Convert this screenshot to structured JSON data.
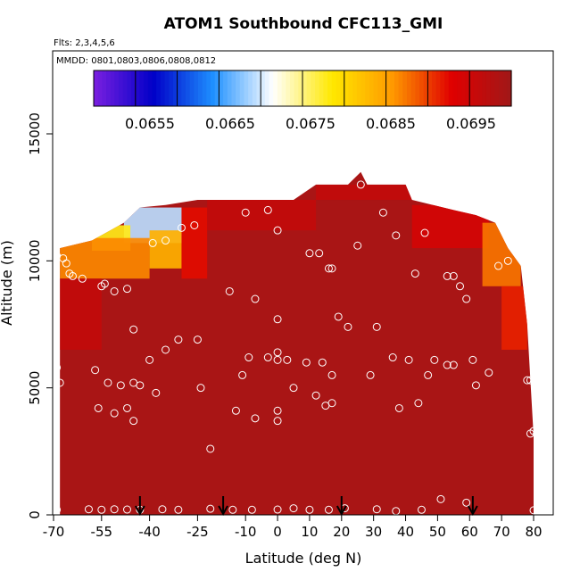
{
  "chart_data": {
    "type": "heatmap",
    "title": "ATOM1 Southbound CFC113_GMI",
    "flights_label": "Flts: 2,3,4,5,6",
    "mmdd_label": "MMDD: 0801,0803,0806,0808,0812",
    "xlabel": "Latitude (deg N)",
    "ylabel": "Altitude (m)",
    "xlim": [
      -70,
      85
    ],
    "ylim": [
      0,
      17500
    ],
    "x_ticks": [
      -70,
      -55,
      -40,
      -25,
      -10,
      0,
      10,
      20,
      30,
      40,
      50,
      60,
      70,
      80
    ],
    "y_ticks": [
      0,
      5000,
      10000,
      15000
    ],
    "colorbar": {
      "range": [
        0.0648,
        0.07
      ],
      "ticks": [
        0.0655,
        0.0665,
        0.0675,
        0.0685,
        0.0695
      ],
      "tick_labels": [
        "0.0655",
        "0.0665",
        "0.0675",
        "0.0685",
        "0.0695"
      ],
      "colors": [
        "#7a1fe0",
        "#0000c8",
        "#1e90ff",
        "#ffffff",
        "#ffe800",
        "#ff9a00",
        "#e00000",
        "#a01818"
      ]
    },
    "field": {
      "background_value": 0.0699,
      "southern_edge_lat": -68,
      "northern_edge_lat": 79,
      "max_altitude_m": 13500
    },
    "ceiling_profile": [
      {
        "lat": -68,
        "alt": 10500
      },
      {
        "lat": -58,
        "alt": 10800
      },
      {
        "lat": -48,
        "alt": 11500
      },
      {
        "lat": -43,
        "alt": 12100
      },
      {
        "lat": -35,
        "alt": 12200
      },
      {
        "lat": -25,
        "alt": 12400
      },
      {
        "lat": -15,
        "alt": 12400
      },
      {
        "lat": -5,
        "alt": 12400
      },
      {
        "lat": 5,
        "alt": 12400
      },
      {
        "lat": 12,
        "alt": 13000
      },
      {
        "lat": 22,
        "alt": 13000
      },
      {
        "lat": 26,
        "alt": 13500
      },
      {
        "lat": 28,
        "alt": 13000
      },
      {
        "lat": 40,
        "alt": 13000
      },
      {
        "lat": 42,
        "alt": 12400
      },
      {
        "lat": 55,
        "alt": 12000
      },
      {
        "lat": 62,
        "alt": 11800
      },
      {
        "lat": 68,
        "alt": 11500
      },
      {
        "lat": 72,
        "alt": 10500
      },
      {
        "lat": 76,
        "alt": 9800
      },
      {
        "lat": 78,
        "alt": 7500
      },
      {
        "lat": 79,
        "alt": 5300
      },
      {
        "lat": 80,
        "alt": 3100
      }
    ],
    "low_value_patches": [
      {
        "lat_min": -48,
        "lat_max": -30,
        "alt_min": 10700,
        "alt_max": 12100,
        "value": 0.0668
      },
      {
        "lat_min": -58,
        "lat_max": -46,
        "alt_min": 10400,
        "alt_max": 11400,
        "value": 0.0677
      },
      {
        "lat_min": -68,
        "lat_max": -40,
        "alt_min": 9300,
        "alt_max": 10900,
        "value": 0.0686
      },
      {
        "lat_min": -40,
        "lat_max": -30,
        "alt_min": 9700,
        "alt_max": 11200,
        "value": 0.0683
      },
      {
        "lat_min": -30,
        "lat_max": -22,
        "alt_min": 9300,
        "alt_max": 12100,
        "value": 0.0692
      },
      {
        "lat_min": -68,
        "lat_max": -55,
        "alt_min": 6500,
        "alt_max": 9300,
        "value": 0.0696
      },
      {
        "lat_min": -22,
        "lat_max": 12,
        "alt_min": 11200,
        "alt_max": 12400,
        "value": 0.0696
      },
      {
        "lat_min": 42,
        "lat_max": 66,
        "alt_min": 10500,
        "alt_max": 12200,
        "value": 0.0694
      },
      {
        "lat_min": 64,
        "lat_max": 76,
        "alt_min": 9000,
        "alt_max": 11500,
        "value": 0.0687
      },
      {
        "lat_min": 70,
        "lat_max": 78,
        "alt_min": 6500,
        "alt_max": 9000,
        "value": 0.0691
      },
      {
        "lat_min": 12,
        "lat_max": 42,
        "alt_min": 12400,
        "alt_max": 13000,
        "value": 0.0696
      }
    ],
    "observation_points": [
      [
        -69,
        200
      ],
      [
        -59,
        220
      ],
      [
        -55,
        200
      ],
      [
        -51,
        220
      ],
      [
        -47,
        210
      ],
      [
        -43,
        200
      ],
      [
        -36,
        220
      ],
      [
        -31,
        200
      ],
      [
        -21,
        240
      ],
      [
        -14,
        200
      ],
      [
        -8,
        200
      ],
      [
        0,
        210
      ],
      [
        5,
        260
      ],
      [
        10,
        200
      ],
      [
        16,
        200
      ],
      [
        21,
        260
      ],
      [
        31,
        220
      ],
      [
        37,
        150
      ],
      [
        45,
        200
      ],
      [
        51,
        620
      ],
      [
        59,
        480
      ],
      [
        80,
        180
      ],
      [
        -69,
        5800
      ],
      [
        -68,
        5200
      ],
      [
        -57,
        5700
      ],
      [
        -56,
        4200
      ],
      [
        -53,
        5200
      ],
      [
        -51,
        4000
      ],
      [
        -49,
        5100
      ],
      [
        -47,
        4200
      ],
      [
        -45,
        3700
      ],
      [
        -45,
        5200
      ],
      [
        -43,
        5100
      ],
      [
        -40,
        6100
      ],
      [
        -38,
        4800
      ],
      [
        -35,
        6500
      ],
      [
        -31,
        6900
      ],
      [
        -25,
        6900
      ],
      [
        -24,
        5000
      ],
      [
        -21,
        2600
      ],
      [
        -13,
        4100
      ],
      [
        -11,
        5500
      ],
      [
        -9,
        6200
      ],
      [
        -7,
        3800
      ],
      [
        -3,
        6200
      ],
      [
        0,
        6400
      ],
      [
        0,
        6100
      ],
      [
        0,
        4100
      ],
      [
        0,
        3700
      ],
      [
        3,
        6100
      ],
      [
        5,
        5000
      ],
      [
        9,
        6000
      ],
      [
        12,
        4700
      ],
      [
        14,
        6000
      ],
      [
        15,
        4300
      ],
      [
        17,
        4400
      ],
      [
        17,
        5500
      ],
      [
        19,
        7800
      ],
      [
        29,
        5500
      ],
      [
        36,
        6200
      ],
      [
        38,
        4200
      ],
      [
        41,
        6100
      ],
      [
        44,
        4400
      ],
      [
        47,
        5500
      ],
      [
        49,
        6100
      ],
      [
        53,
        5900
      ],
      [
        55,
        5900
      ],
      [
        61,
        6100
      ],
      [
        62,
        5100
      ],
      [
        66,
        5600
      ],
      [
        79,
        5300
      ],
      [
        80,
        3300
      ],
      [
        81,
        3200
      ],
      [
        -69,
        10200
      ],
      [
        -67,
        10100
      ],
      [
        -66,
        9900
      ],
      [
        -65,
        9500
      ],
      [
        -64,
        9400
      ],
      [
        -61,
        9300
      ],
      [
        -55,
        9000
      ],
      [
        -54,
        9100
      ],
      [
        -51,
        8800
      ],
      [
        -47,
        8900
      ],
      [
        -45,
        7300
      ],
      [
        -39,
        10700
      ],
      [
        -35,
        10800
      ],
      [
        -30,
        11300
      ],
      [
        -26,
        11400
      ],
      [
        -15,
        8800
      ],
      [
        -10,
        11900
      ],
      [
        -7,
        8500
      ],
      [
        -3,
        12000
      ],
      [
        0,
        11200
      ],
      [
        0,
        7700
      ],
      [
        10,
        10300
      ],
      [
        13,
        10300
      ],
      [
        16,
        9700
      ],
      [
        17,
        9700
      ],
      [
        22,
        7400
      ],
      [
        25,
        10600
      ],
      [
        26,
        13000
      ],
      [
        31,
        7400
      ],
      [
        33,
        11900
      ],
      [
        37,
        11000
      ],
      [
        43,
        9500
      ],
      [
        46,
        11100
      ],
      [
        53,
        9400
      ],
      [
        55,
        9400
      ],
      [
        57,
        9000
      ],
      [
        59,
        8500
      ],
      [
        69,
        9800
      ],
      [
        72,
        10000
      ],
      [
        77,
        11300
      ],
      [
        78,
        5300
      ],
      [
        79,
        3200
      ]
    ],
    "flight_markers": [
      -43,
      -17,
      20,
      61
    ]
  }
}
